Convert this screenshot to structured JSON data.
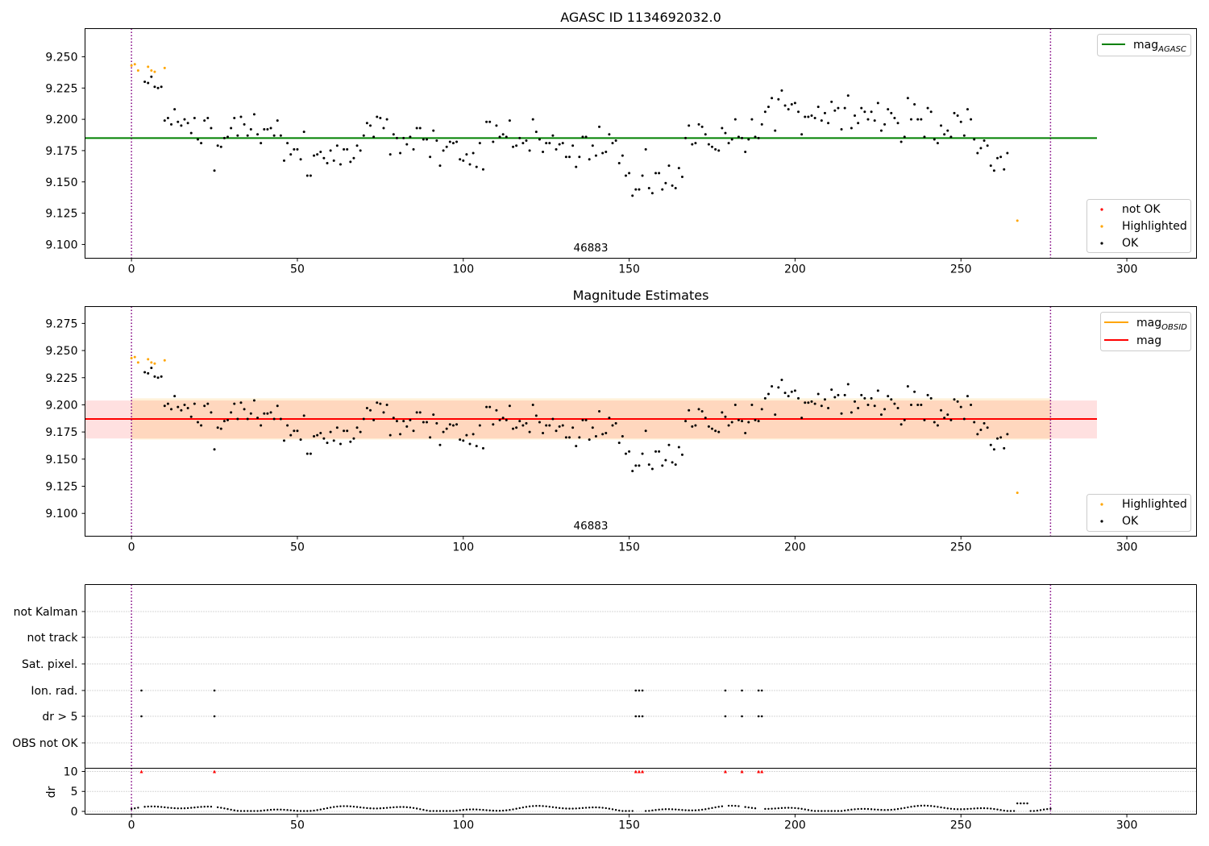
{
  "figure": {
    "panels": [
      {
        "id": "top",
        "title": "AGASC ID 1134692032.0",
        "annotation": "46883",
        "legend_lines": [
          {
            "label": "mag",
            "subscript": "AGASC",
            "color": "#008000"
          }
        ],
        "legend_points": [
          {
            "label": "not OK",
            "color": "#ff0000"
          },
          {
            "label": "Highlighted",
            "color": "#ffa500"
          },
          {
            "label": "OK",
            "color": "#000000"
          }
        ]
      },
      {
        "id": "middle",
        "title": "Magnitude Estimates",
        "annotation": "46883",
        "legend_lines": [
          {
            "label": "mag",
            "subscript": "OBSID",
            "color": "#ffa500"
          },
          {
            "label": "mag",
            "subscript": "",
            "color": "#ff0000"
          }
        ],
        "legend_points": [
          {
            "label": "Highlighted",
            "color": "#ffa500"
          },
          {
            "label": "OK",
            "color": "#000000"
          }
        ]
      },
      {
        "id": "flags",
        "flag_labels": [
          "not Kalman",
          "not track",
          "Sat. pixel.",
          "Ion. rad.",
          "dr > 5",
          "OBS not OK"
        ]
      },
      {
        "id": "dr",
        "ylabel": "dr"
      }
    ]
  },
  "chart_data": [
    {
      "type": "scatter",
      "panel": "top",
      "title": "AGASC ID 1134692032.0",
      "xlim": [
        -14,
        321
      ],
      "ylim": [
        9.089,
        9.2725
      ],
      "xticks": [
        0,
        50,
        100,
        150,
        200,
        250,
        300
      ],
      "yticks": [
        9.1,
        9.125,
        9.15,
        9.175,
        9.2,
        9.225,
        9.25
      ],
      "obs_boundaries": [
        0,
        277
      ],
      "mag_agasc": 9.185,
      "mag_agasc_x_range": [
        -14,
        291
      ],
      "highlighted": [
        [
          0,
          9.243
        ],
        [
          1,
          9.244
        ],
        [
          2,
          9.239
        ],
        [
          5,
          9.242
        ],
        [
          6,
          9.239
        ],
        [
          7,
          9.238
        ],
        [
          10,
          9.241
        ],
        [
          267,
          9.119
        ]
      ],
      "ok_mag_series": [
        9.23,
        9.229,
        9.234,
        9.226,
        9.225,
        9.226,
        9.199,
        9.201,
        9.196,
        9.208,
        9.198,
        9.195,
        9.2,
        9.197,
        9.189,
        9.201,
        9.184,
        9.181,
        9.199,
        9.201,
        9.193,
        9.159,
        9.179,
        9.178,
        9.185,
        9.186,
        9.193,
        9.201,
        9.187,
        9.202,
        9.196,
        9.187,
        9.192,
        9.204,
        9.188,
        9.181,
        9.192,
        9.192,
        9.193,
        9.187,
        9.199,
        9.187,
        9.167,
        9.181,
        9.172,
        9.176,
        9.176,
        9.168,
        9.19,
        9.155,
        9.155,
        9.171,
        9.172,
        9.174,
        9.169,
        9.165,
        9.175,
        9.167,
        9.179,
        9.164,
        9.176,
        9.176,
        9.166,
        9.169,
        9.179,
        9.175,
        9.187,
        9.197,
        9.195,
        9.186,
        9.202,
        9.201,
        9.193,
        9.2,
        9.172,
        9.188,
        9.185,
        9.173,
        9.185,
        9.18,
        9.186,
        9.176,
        9.193,
        9.193,
        9.184,
        9.184,
        9.17,
        9.191,
        9.183,
        9.163,
        9.175,
        9.178,
        9.182,
        9.181,
        9.182,
        9.168,
        9.167,
        9.172,
        9.164,
        9.173,
        9.162,
        9.181,
        9.16,
        9.198,
        9.198,
        9.182,
        9.195,
        9.186,
        9.188,
        9.186,
        9.199,
        9.178,
        9.179,
        9.185,
        9.181,
        9.183,
        9.175,
        9.2,
        9.19,
        9.184,
        9.174,
        9.181,
        9.181,
        9.187,
        9.176,
        9.18,
        9.181,
        9.17,
        9.17,
        9.179,
        9.162,
        9.17,
        9.186,
        9.186,
        9.168,
        9.179,
        9.171,
        9.194,
        9.173,
        9.174,
        9.188,
        9.181,
        9.183,
        9.165,
        9.171,
        9.155,
        9.157,
        9.139,
        9.144,
        9.144,
        9.155,
        9.176,
        9.145,
        9.141,
        9.157,
        9.157,
        9.144,
        9.149,
        9.163,
        9.147,
        9.145,
        9.161,
        9.154,
        9.185,
        9.195,
        9.18,
        9.181,
        9.196,
        9.194,
        9.188,
        9.18,
        9.178,
        9.176,
        9.175,
        9.193,
        9.189,
        9.181,
        9.184,
        9.2,
        9.186,
        9.185,
        9.174,
        9.184,
        9.2,
        9.186,
        9.185,
        9.196,
        9.206,
        9.21,
        9.217,
        9.191,
        9.216,
        9.223,
        9.211,
        9.208,
        9.212,
        9.213,
        9.206,
        9.188,
        9.202,
        9.202,
        9.203,
        9.201,
        9.21,
        9.199,
        9.205,
        9.197,
        9.214,
        9.207,
        9.209,
        9.192,
        9.209,
        9.219,
        9.193,
        9.203,
        9.197,
        9.209,
        9.206,
        9.2,
        9.206,
        9.199,
        9.213,
        9.191,
        9.196,
        9.208,
        9.205,
        9.201,
        9.197,
        9.182,
        9.186,
        9.217,
        9.2,
        9.212,
        9.2,
        9.2,
        9.186,
        9.209,
        9.206,
        9.184,
        9.181,
        9.195,
        9.188,
        9.191,
        9.186,
        9.205,
        9.203,
        9.198,
        9.187,
        9.208,
        9.2,
        9.184,
        9.173,
        9.177,
        9.183,
        9.179,
        9.163,
        9.159,
        9.169,
        9.17,
        9.16,
        9.173
      ],
      "ok_x_start": 4
    },
    {
      "type": "scatter",
      "panel": "middle",
      "title": "Magnitude Estimates",
      "xlim": [
        -14,
        321
      ],
      "ylim": [
        9.079,
        9.2905
      ],
      "xticks": [
        0,
        50,
        100,
        150,
        200,
        250,
        300
      ],
      "yticks": [
        9.1,
        9.125,
        9.15,
        9.175,
        9.2,
        9.225,
        9.25,
        9.275
      ],
      "mag": 9.187,
      "mag_band": [
        9.169,
        9.204
      ],
      "mag_obsid": 9.187,
      "mag_obsid_band": [
        9.168,
        9.206
      ],
      "obsid_x_range": [
        0,
        277
      ],
      "mag_x_range": [
        -14,
        291
      ]
    },
    {
      "type": "scatter",
      "panel": "flags",
      "categories": [
        "not Kalman",
        "not track",
        "Sat. pixel.",
        "Ion. rad.",
        "dr > 5",
        "OBS not OK"
      ],
      "ion_rad_x": [
        3,
        25,
        152,
        153,
        154,
        179,
        184,
        189,
        190
      ],
      "dr_gt_5_x": [
        3,
        25,
        152,
        153,
        154,
        179,
        184,
        189,
        190
      ]
    },
    {
      "type": "scatter",
      "panel": "dr",
      "ylabel": "dr",
      "ylim": [
        -0.7,
        10.8
      ],
      "yticks": [
        0,
        5,
        10
      ],
      "clipped_at_10_x": [
        3,
        25,
        152,
        153,
        154,
        179,
        184,
        189,
        190
      ]
    }
  ]
}
